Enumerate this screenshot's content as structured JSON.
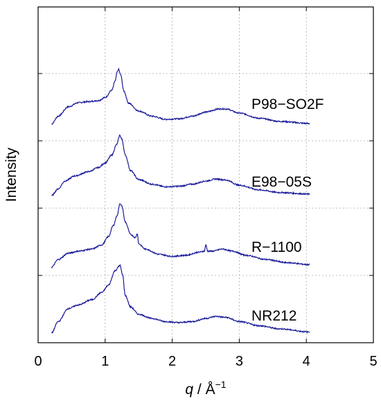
{
  "chart_data": {
    "type": "line",
    "title": "",
    "xlabel_symbol": "q",
    "xlabel_unit": " / Å",
    "xlabel_unit_exp": "−1",
    "ylabel": "Intensity",
    "xlim": [
      0,
      5
    ],
    "x_ticks": [
      "0",
      "1",
      "2",
      "3",
      "4",
      "5"
    ],
    "y_ticks_labeled": false,
    "grid": true,
    "legend": "none (series labeled inline, right side)",
    "line_color": "#1a1a99",
    "series": [
      {
        "name": "P98−SO2F",
        "points": [
          [
            0.2,
            0.15
          ],
          [
            0.3,
            0.3
          ],
          [
            0.45,
            0.48
          ],
          [
            0.6,
            0.56
          ],
          [
            0.75,
            0.58
          ],
          [
            0.9,
            0.6
          ],
          [
            1.0,
            0.66
          ],
          [
            1.1,
            0.8
          ],
          [
            1.15,
            0.98
          ],
          [
            1.18,
            1.15
          ],
          [
            1.2,
            1.2
          ],
          [
            1.23,
            1.1
          ],
          [
            1.28,
            0.78
          ],
          [
            1.35,
            0.55
          ],
          [
            1.5,
            0.4
          ],
          [
            1.7,
            0.3
          ],
          [
            1.9,
            0.24
          ],
          [
            2.1,
            0.25
          ],
          [
            2.3,
            0.3
          ],
          [
            2.5,
            0.38
          ],
          [
            2.7,
            0.44
          ],
          [
            2.8,
            0.44
          ],
          [
            3.0,
            0.36
          ],
          [
            3.3,
            0.26
          ],
          [
            3.6,
            0.2
          ],
          [
            4.05,
            0.16
          ]
        ]
      },
      {
        "name": "E98−05S",
        "points": [
          [
            0.2,
            0.12
          ],
          [
            0.3,
            0.25
          ],
          [
            0.4,
            0.4
          ],
          [
            0.55,
            0.5
          ],
          [
            0.75,
            0.58
          ],
          [
            0.9,
            0.66
          ],
          [
            1.0,
            0.75
          ],
          [
            1.1,
            0.9
          ],
          [
            1.17,
            1.1
          ],
          [
            1.22,
            1.28
          ],
          [
            1.25,
            1.2
          ],
          [
            1.3,
            0.9
          ],
          [
            1.38,
            0.6
          ],
          [
            1.5,
            0.43
          ],
          [
            1.7,
            0.34
          ],
          [
            1.9,
            0.29
          ],
          [
            2.1,
            0.3
          ],
          [
            2.3,
            0.34
          ],
          [
            2.5,
            0.4
          ],
          [
            2.65,
            0.44
          ],
          [
            2.8,
            0.42
          ],
          [
            3.0,
            0.32
          ],
          [
            3.3,
            0.23
          ],
          [
            3.6,
            0.18
          ],
          [
            4.05,
            0.15
          ]
        ]
      },
      {
        "name": "R−1100",
        "points": [
          [
            0.2,
            0.05
          ],
          [
            0.3,
            0.2
          ],
          [
            0.45,
            0.32
          ],
          [
            0.6,
            0.36
          ],
          [
            0.8,
            0.4
          ],
          [
            0.95,
            0.48
          ],
          [
            1.05,
            0.64
          ],
          [
            1.12,
            0.85
          ],
          [
            1.18,
            1.05
          ],
          [
            1.22,
            1.28
          ],
          [
            1.25,
            1.22
          ],
          [
            1.3,
            0.92
          ],
          [
            1.38,
            0.68
          ],
          [
            1.45,
            0.62
          ],
          [
            1.48,
            0.7
          ],
          [
            1.5,
            0.5
          ],
          [
            1.6,
            0.4
          ],
          [
            1.8,
            0.3
          ],
          [
            2.0,
            0.26
          ],
          [
            2.2,
            0.28
          ],
          [
            2.4,
            0.34
          ],
          [
            2.48,
            0.36
          ],
          [
            2.5,
            0.48
          ],
          [
            2.53,
            0.36
          ],
          [
            2.6,
            0.36
          ],
          [
            2.75,
            0.4
          ],
          [
            2.9,
            0.36
          ],
          [
            3.1,
            0.28
          ],
          [
            3.4,
            0.2
          ],
          [
            3.7,
            0.14
          ],
          [
            4.05,
            0.1
          ]
        ]
      },
      {
        "name": "NR212",
        "points": [
          [
            0.2,
            0.08
          ],
          [
            0.3,
            0.3
          ],
          [
            0.45,
            0.55
          ],
          [
            0.6,
            0.62
          ],
          [
            0.8,
            0.72
          ],
          [
            0.95,
            0.86
          ],
          [
            1.05,
            1.0
          ],
          [
            1.15,
            1.28
          ],
          [
            1.22,
            1.38
          ],
          [
            1.26,
            1.2
          ],
          [
            1.3,
            0.8
          ],
          [
            1.38,
            0.58
          ],
          [
            1.5,
            0.44
          ],
          [
            1.7,
            0.36
          ],
          [
            1.9,
            0.3
          ],
          [
            2.1,
            0.28
          ],
          [
            2.3,
            0.3
          ],
          [
            2.5,
            0.36
          ],
          [
            2.65,
            0.4
          ],
          [
            2.8,
            0.38
          ],
          [
            3.0,
            0.3
          ],
          [
            3.3,
            0.22
          ],
          [
            3.6,
            0.16
          ],
          [
            4.05,
            0.1
          ]
        ]
      }
    ]
  }
}
